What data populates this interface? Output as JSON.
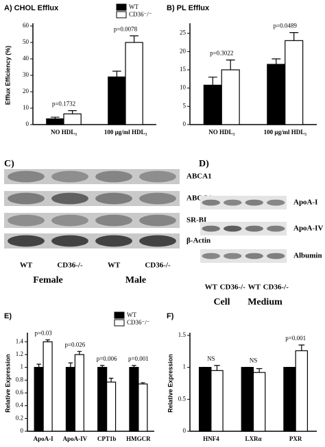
{
  "chart_data": [
    {
      "type": "bar",
      "title": "A) CHOL Efflux",
      "ylabel": "Efflux Efficiency (%)",
      "categories": [
        "NO HDL₃",
        "100 μg/ml HDL₃"
      ],
      "series": [
        {
          "name": "WT",
          "color": "#000000",
          "values": [
            3.5,
            29
          ],
          "errors": [
            1,
            3.5
          ]
        },
        {
          "name": "CD36⁻/⁻",
          "color": "#ffffff",
          "values": [
            6.5,
            50
          ],
          "errors": [
            2,
            4
          ]
        }
      ],
      "annotations": [
        "p=0.1732",
        "p=0.0078"
      ],
      "ylim": [
        0,
        60
      ],
      "yticks": [
        0,
        10,
        20,
        30,
        40,
        50,
        60
      ]
    },
    {
      "type": "bar",
      "title": "B) PL Efflux",
      "categories": [
        "NO HDL₃",
        "100 μg/ml HDL₃"
      ],
      "series": [
        {
          "color": "#000000",
          "values": [
            10.8,
            16.5
          ],
          "errors": [
            2.2,
            1.5
          ]
        },
        {
          "color": "#ffffff",
          "values": [
            15,
            23
          ],
          "errors": [
            2.7,
            2.2
          ]
        }
      ],
      "annotations": [
        "p=0.3022",
        "p=0.0489"
      ],
      "ylim": [
        0,
        27
      ],
      "yticks": [
        0,
        5,
        10,
        15,
        20,
        25
      ]
    },
    {
      "type": "bar",
      "title": "E)",
      "ylabel": "Relative Expression",
      "categories": [
        "ApoA-I",
        "ApoA-IV",
        "CPT1b",
        "HMGCR"
      ],
      "series": [
        {
          "name": "WT",
          "color": "#000000",
          "values": [
            1,
            1,
            1,
            1
          ],
          "errors": [
            0.05,
            0.07,
            0.03,
            0.03
          ]
        },
        {
          "name": "CD36⁻/⁻",
          "color": "#ffffff",
          "values": [
            1.4,
            1.2,
            0.77,
            0.74
          ],
          "errors": [
            0.03,
            0.05,
            0.06,
            0.02
          ]
        }
      ],
      "annotations": [
        "p=0.03",
        "p=0.026",
        "p=0.006",
        "p=0.001"
      ],
      "ylim": [
        0,
        1.5
      ],
      "yticks": [
        0,
        0.2,
        0.4,
        0.6,
        0.8,
        1,
        1.2,
        1.4
      ]
    },
    {
      "type": "bar",
      "title": "F)",
      "ylabel": "Relative Expression",
      "categories": [
        "HNF4",
        "LXRα",
        "PXR"
      ],
      "series": [
        {
          "color": "#000000",
          "values": [
            1,
            1,
            1
          ],
          "errors": [
            0,
            0,
            0
          ]
        },
        {
          "color": "#ffffff",
          "values": [
            0.95,
            0.92,
            1.26
          ],
          "errors": [
            0.08,
            0.06,
            0.09
          ]
        }
      ],
      "annotations": [
        "NS",
        "NS",
        "p=0.001"
      ],
      "ylim": [
        0,
        1.5
      ],
      "yticks": [
        0,
        0.5,
        1,
        1.5
      ]
    }
  ],
  "blots": [
    {
      "label": "C)",
      "rows": [
        "ABCA1",
        "ABCG1",
        "SR-BI",
        "β-Actin"
      ],
      "lanes": [
        "WT",
        "CD36-/-",
        "WT",
        "CD36-/-"
      ],
      "groups": [
        "Female",
        "Male"
      ]
    },
    {
      "label": "D)",
      "rows": [
        "ApoA-I",
        "ApoA-IV",
        "Albumin"
      ],
      "lanes": [
        "WT",
        "CD36-/-",
        "WT",
        "CD36-/-"
      ],
      "groups": [
        "Cell",
        "Medium"
      ]
    }
  ]
}
